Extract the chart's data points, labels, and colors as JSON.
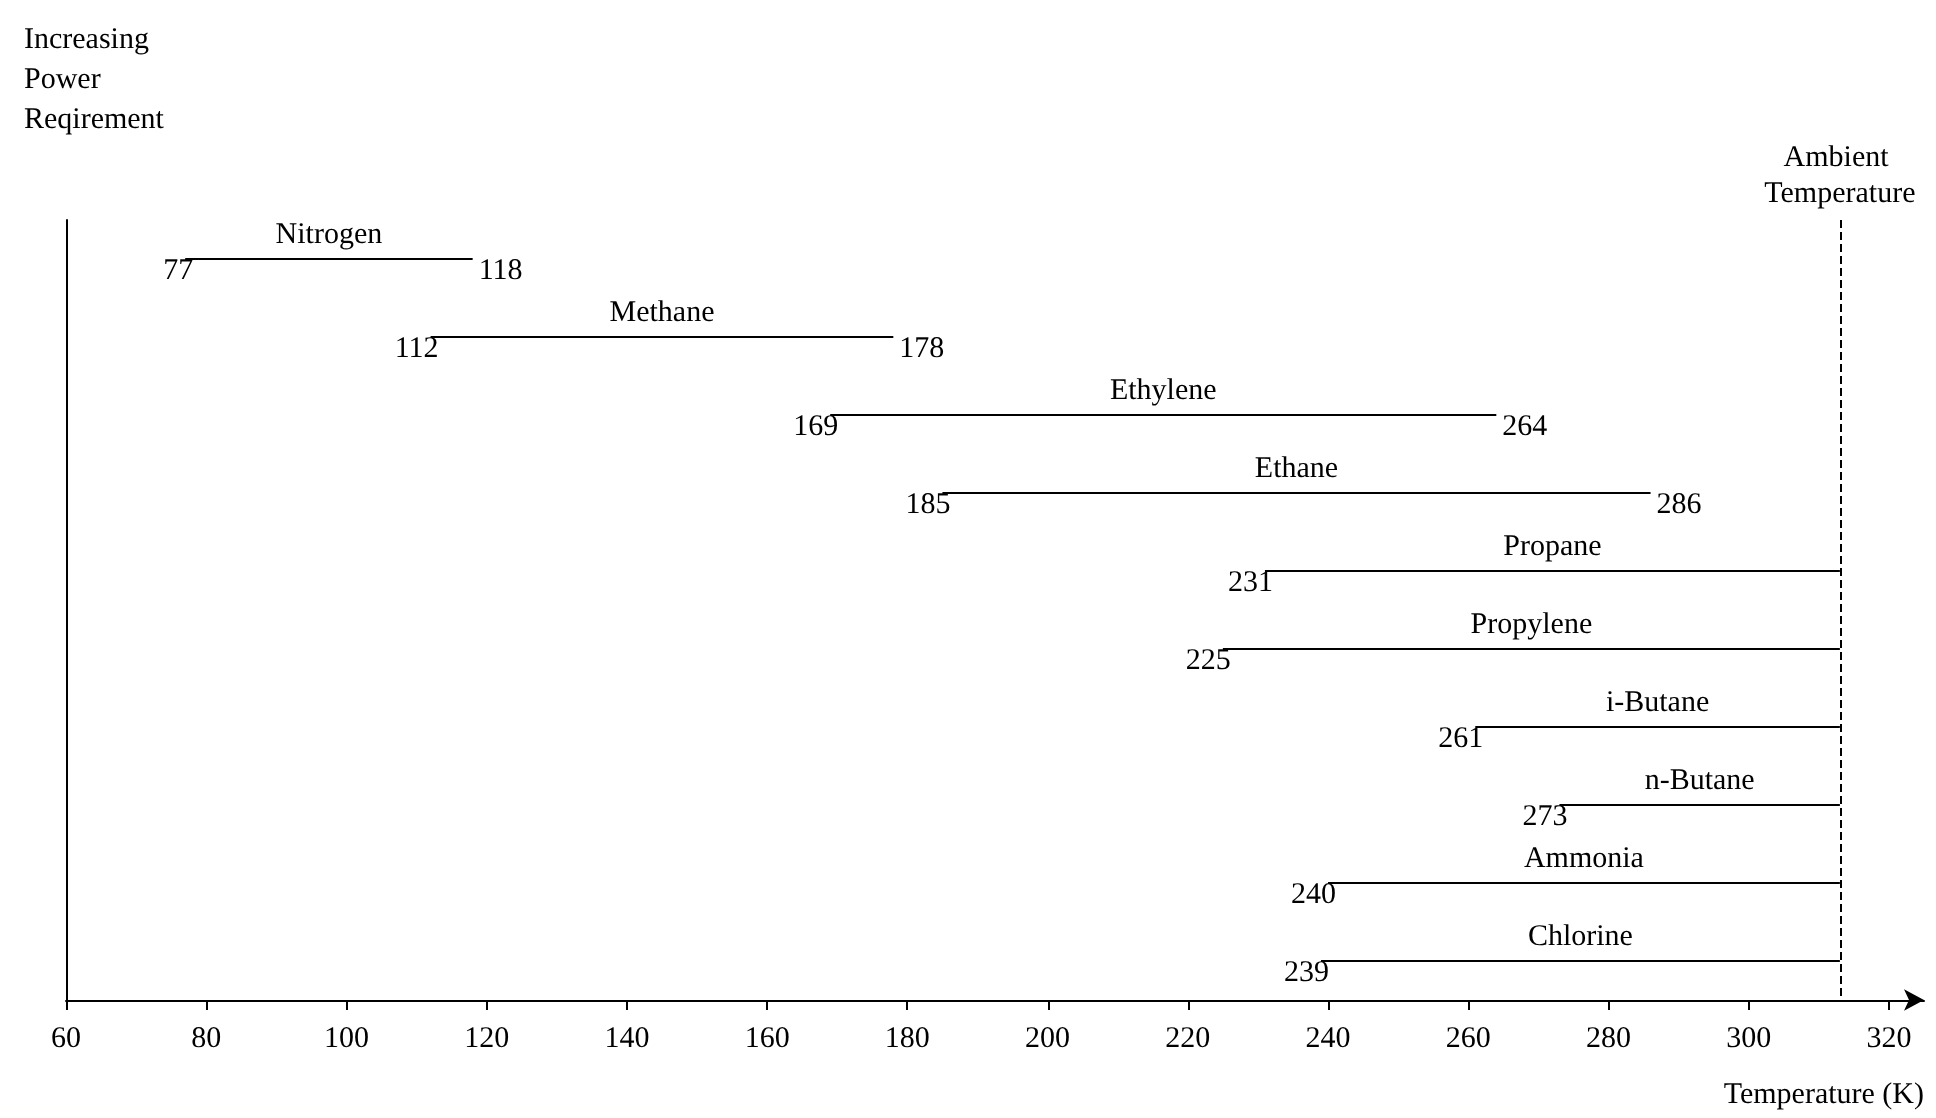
{
  "chart_data": {
    "type": "bar",
    "orientation": "horizontal",
    "xlabel": "Temperature (K)",
    "ylabel": "Increasing Power Reqirement",
    "categories": [
      "Nitrogen",
      "Methane",
      "Ethylene",
      "Ethane",
      "Propane",
      "Propylene",
      "i-Butane",
      "n-Butane",
      "Ammonia",
      "Chlorine"
    ],
    "base": [
      77,
      112,
      169,
      185,
      231,
      225,
      261,
      273,
      240,
      239
    ],
    "values": [
      41,
      66,
      95,
      101,
      82,
      88,
      52,
      40,
      73,
      74
    ],
    "value_labels": [
      "118",
      "178",
      "264",
      "286",
      null,
      null,
      null,
      null,
      null,
      null
    ],
    "annotations": [
      "77",
      "112",
      "169",
      "185",
      "231",
      "225",
      "261",
      "273",
      "240",
      "239"
    ],
    "color": "#000000",
    "xlim": [
      60,
      325
    ],
    "xticks": [
      60,
      80,
      100,
      120,
      140,
      160,
      180,
      200,
      220,
      240,
      260,
      280,
      300,
      320
    ],
    "tick_labels": "x",
    "grid": false,
    "ref_lines": [
      {
        "axis": "x",
        "value": 313,
        "label": "Ambient Temperature",
        "line_style": "dashed",
        "color": "#000000"
      }
    ]
  }
}
